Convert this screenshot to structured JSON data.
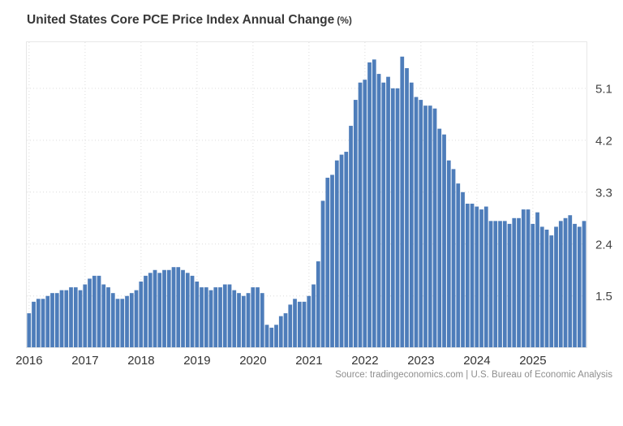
{
  "title": {
    "main": "United States Core PCE Price Index Annual Change",
    "unit": "(%)"
  },
  "source": "Source: tradingeconomics.com | U.S. Bureau of Economic Analysis",
  "colors": {
    "bar": "#4e7dba",
    "grid": "#dcdcdc",
    "plot_border": "#e7e7e7",
    "ytick_text": "#444444",
    "xtick_text": "#333333",
    "title_text": "#383838",
    "source_text": "#8e8e8e",
    "background": "#ffffff"
  },
  "chart_data": {
    "type": "bar",
    "title": "United States Core PCE Price Index Annual Change (%)",
    "frequency": "monthly",
    "x_start": "2016-01",
    "x_end": "2025-12",
    "xlabel": "",
    "ylabel": "%",
    "ylim": [
      0.61,
      5.9
    ],
    "yticks": [
      1.5,
      2.4,
      3.3,
      4.2,
      5.1
    ],
    "ytick_side": "right",
    "grid": "dotted",
    "legend": "none",
    "categories": [
      "2016",
      "2017",
      "2018",
      "2019",
      "2020",
      "2021",
      "2022",
      "2023",
      "2024",
      "2025"
    ],
    "series": [
      {
        "name": "Core PCE Price Index Annual Change (%)",
        "values": [
          1.2,
          1.4,
          1.45,
          1.45,
          1.5,
          1.55,
          1.55,
          1.6,
          1.6,
          1.65,
          1.65,
          1.6,
          1.7,
          1.8,
          1.85,
          1.85,
          1.7,
          1.65,
          1.55,
          1.45,
          1.45,
          1.5,
          1.55,
          1.6,
          1.75,
          1.85,
          1.9,
          1.95,
          1.9,
          1.95,
          1.95,
          2.0,
          2.0,
          1.95,
          1.9,
          1.85,
          1.75,
          1.65,
          1.65,
          1.6,
          1.65,
          1.65,
          1.7,
          1.7,
          1.6,
          1.55,
          1.5,
          1.55,
          1.65,
          1.65,
          1.55,
          1.0,
          0.95,
          1.0,
          1.15,
          1.2,
          1.35,
          1.45,
          1.4,
          1.4,
          1.5,
          1.7,
          2.1,
          3.15,
          3.55,
          3.6,
          3.85,
          3.95,
          4.0,
          4.45,
          4.9,
          5.2,
          5.25,
          5.55,
          5.6,
          5.35,
          5.2,
          5.3,
          5.1,
          5.1,
          5.65,
          5.45,
          5.2,
          4.95,
          4.9,
          4.8,
          4.8,
          4.75,
          4.4,
          4.3,
          3.85,
          3.7,
          3.45,
          3.3,
          3.1,
          3.1,
          3.05,
          3.0,
          3.05,
          2.8,
          2.8,
          2.8,
          2.8,
          2.75,
          2.85,
          2.85,
          3.0,
          3.0,
          2.75,
          2.95,
          2.7,
          2.65,
          2.55,
          2.7,
          2.8,
          2.85,
          2.9,
          2.75,
          2.7,
          2.8
        ]
      }
    ]
  }
}
